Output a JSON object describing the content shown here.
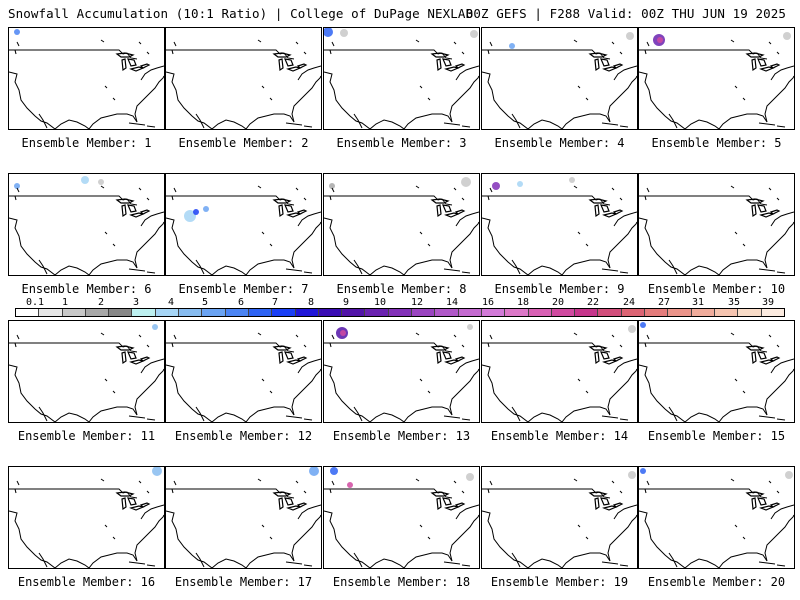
{
  "header": {
    "title_left": "Snowfall Accumulation (10:1 Ratio) | College of DuPage NEXLAB",
    "title_right": "00Z GEFS | F288 Valid: 00Z THU JUN 19 2025"
  },
  "legend": {
    "labels": [
      "0.1",
      "1",
      "2",
      "3",
      "4",
      "5",
      "6",
      "7",
      "8",
      "9",
      "10",
      "12",
      "14",
      "16",
      "18",
      "20",
      "22",
      "24",
      "27",
      "31",
      "35",
      "39"
    ],
    "colors": [
      "#ffffff",
      "#e6e6e6",
      "#c8c8c8",
      "#a8a8a8",
      "#888888",
      "#bdf0f0",
      "#a6d5f5",
      "#87bcf0",
      "#6aa3f2",
      "#4b84f3",
      "#2e63f3",
      "#1a3ff5",
      "#2016d8",
      "#3a0cb4",
      "#5214a8",
      "#6a22b0",
      "#8230b8",
      "#9a44c0",
      "#b058c8",
      "#c46ad0",
      "#d27ad8",
      "#dc78c8",
      "#d860b4",
      "#d04aa0",
      "#c6368c",
      "#d24e7c",
      "#dc6474",
      "#e47c7c",
      "#eb948a",
      "#f0ac9c",
      "#f5c4b0",
      "#f9dcc8",
      "#fcebe0"
    ]
  },
  "panels": [
    {
      "caption": "Ensemble Member: 1",
      "snow": [
        {
          "x": 8,
          "y": 4,
          "r": 3,
          "color": "#4b84f3"
        }
      ]
    },
    {
      "caption": "Ensemble Member: 2",
      "snow": []
    },
    {
      "caption": "Ensemble Member: 3",
      "snow": [
        {
          "x": 4,
          "y": 4,
          "r": 5,
          "color": "#2e63f3"
        },
        {
          "x": 20,
          "y": 5,
          "r": 4,
          "color": "#c8c8c8"
        },
        {
          "x": 150,
          "y": 6,
          "r": 4,
          "color": "#c8c8c8"
        }
      ]
    },
    {
      "caption": "Ensemble Member: 4",
      "snow": [
        {
          "x": 30,
          "y": 18,
          "r": 3,
          "color": "#6aa3f2"
        },
        {
          "x": 148,
          "y": 8,
          "r": 4,
          "color": "#c8c8c8"
        }
      ]
    },
    {
      "caption": "Ensemble Member: 5",
      "snow": [
        {
          "x": 20,
          "y": 12,
          "r": 6,
          "color": "#6a22b0"
        },
        {
          "x": 21,
          "y": 12,
          "r": 3,
          "color": "#d04aa0"
        },
        {
          "x": 148,
          "y": 8,
          "r": 4,
          "color": "#c8c8c8"
        }
      ]
    },
    {
      "caption": "Ensemble Member: 6",
      "snow": [
        {
          "x": 8,
          "y": 12,
          "r": 3,
          "color": "#6aa3f2"
        },
        {
          "x": 76,
          "y": 6,
          "r": 4,
          "color": "#a6d5f5"
        },
        {
          "x": 92,
          "y": 8,
          "r": 3,
          "color": "#c8c8c8"
        }
      ]
    },
    {
      "caption": "Ensemble Member: 7",
      "snow": [
        {
          "x": 24,
          "y": 42,
          "r": 6,
          "color": "#a6d5f5"
        },
        {
          "x": 30,
          "y": 38,
          "r": 3,
          "color": "#1a3ff5"
        },
        {
          "x": 40,
          "y": 35,
          "r": 3,
          "color": "#6aa3f2"
        }
      ]
    },
    {
      "caption": "Ensemble Member: 8",
      "snow": [
        {
          "x": 8,
          "y": 12,
          "r": 3,
          "color": "#a8a8a8"
        },
        {
          "x": 142,
          "y": 8,
          "r": 5,
          "color": "#c8c8c8"
        }
      ]
    },
    {
      "caption": "Ensemble Member: 9",
      "snow": [
        {
          "x": 14,
          "y": 12,
          "r": 4,
          "color": "#8230b8"
        },
        {
          "x": 38,
          "y": 10,
          "r": 3,
          "color": "#a6d5f5"
        },
        {
          "x": 90,
          "y": 6,
          "r": 3,
          "color": "#c8c8c8"
        }
      ]
    },
    {
      "caption": "Ensemble Member: 10",
      "snow": []
    },
    {
      "caption": "Ensemble Member: 11",
      "snow": [
        {
          "x": 146,
          "y": 6,
          "r": 3,
          "color": "#87bcf0"
        }
      ]
    },
    {
      "caption": "Ensemble Member: 12",
      "snow": []
    },
    {
      "caption": "Ensemble Member: 13",
      "snow": [
        {
          "x": 18,
          "y": 12,
          "r": 6,
          "color": "#5214a8"
        },
        {
          "x": 19,
          "y": 12,
          "r": 3,
          "color": "#d04aa0"
        },
        {
          "x": 146,
          "y": 6,
          "r": 3,
          "color": "#c8c8c8"
        }
      ]
    },
    {
      "caption": "Ensemble Member: 14",
      "snow": [
        {
          "x": 150,
          "y": 8,
          "r": 4,
          "color": "#c8c8c8"
        }
      ]
    },
    {
      "caption": "Ensemble Member: 15",
      "snow": [
        {
          "x": 4,
          "y": 4,
          "r": 3,
          "color": "#2e63f3"
        }
      ]
    },
    {
      "caption": "Ensemble Member: 16",
      "snow": [
        {
          "x": 148,
          "y": 4,
          "r": 5,
          "color": "#87bcf0"
        }
      ]
    },
    {
      "caption": "Ensemble Member: 17",
      "snow": [
        {
          "x": 148,
          "y": 4,
          "r": 5,
          "color": "#6aa3f2"
        }
      ]
    },
    {
      "caption": "Ensemble Member: 18",
      "snow": [
        {
          "x": 10,
          "y": 4,
          "r": 4,
          "color": "#2e63f3"
        },
        {
          "x": 26,
          "y": 18,
          "r": 3,
          "color": "#d04aa0"
        },
        {
          "x": 146,
          "y": 10,
          "r": 4,
          "color": "#c8c8c8"
        }
      ]
    },
    {
      "caption": "Ensemble Member: 19",
      "snow": [
        {
          "x": 150,
          "y": 8,
          "r": 4,
          "color": "#c8c8c8"
        }
      ]
    },
    {
      "caption": "Ensemble Member: 20",
      "snow": [
        {
          "x": 4,
          "y": 4,
          "r": 3,
          "color": "#2e63f3"
        },
        {
          "x": 150,
          "y": 8,
          "r": 4,
          "color": "#c8c8c8"
        }
      ]
    }
  ]
}
